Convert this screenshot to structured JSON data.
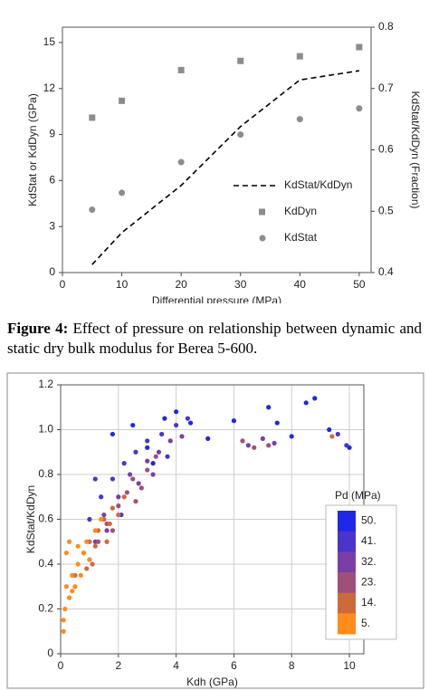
{
  "chart_data": [
    {
      "type": "scatter",
      "x_label": "Differential pressure (MPa)",
      "y_label": "KdStat or KdDyn (GPa)",
      "y2_label": "KdStat/KdDyn (Fraction)",
      "x": [
        5,
        10,
        20,
        30,
        40,
        50
      ],
      "xlim": [
        0,
        52
      ],
      "xticks": [
        0,
        10,
        20,
        30,
        40,
        50
      ],
      "ylim": [
        0,
        16
      ],
      "yticks": [
        0,
        3,
        6,
        9,
        12,
        15
      ],
      "y2lim": [
        0.4,
        0.8
      ],
      "y2ticks": [
        0.4,
        0.5,
        0.6,
        0.7,
        0.8
      ],
      "series": [
        {
          "name": "KdStat/KdDyn",
          "color": "#000000",
          "marker": "dashed-line",
          "axis": "y2",
          "values": [
            0.413,
            0.465,
            0.542,
            0.638,
            0.714,
            0.729
          ]
        },
        {
          "name": "KdDyn",
          "color": "#8c8c8c",
          "marker": "square",
          "values": [
            10.1,
            11.2,
            13.2,
            13.8,
            14.1,
            14.7
          ]
        },
        {
          "name": "KdStat",
          "color": "#8c8c8c",
          "marker": "circle",
          "values": [
            4.1,
            5.2,
            7.2,
            9.0,
            10.0,
            10.7
          ]
        }
      ]
    },
    {
      "type": "scatter",
      "x_label": "Kdh (GPa)",
      "y_label": "KdStat/KdDyn",
      "legend_title": "Pd (MPa)",
      "xlim": [
        0,
        10.5
      ],
      "xticks": [
        0,
        2,
        4,
        6,
        8,
        10
      ],
      "ylim": [
        0,
        1.2
      ],
      "yticks": [
        0,
        0.2,
        0.4,
        0.6,
        0.8,
        {
          "value": 1,
          "label": "1.0"
        },
        1.2
      ],
      "grid": true,
      "series": [
        {
          "name": "50.",
          "color": "#1e28e6",
          "x": [
            1.8,
            2.5,
            3.2,
            3.6,
            4.0,
            4.5,
            6.0,
            7.2,
            7.5,
            8.0,
            8.5,
            8.8,
            9.3,
            10.0,
            5.1,
            3.0
          ],
          "values": [
            0.98,
            1.02,
            0.85,
            1.05,
            1.08,
            1.03,
            1.04,
            1.1,
            1.03,
            0.97,
            1.12,
            1.14,
            1.0,
            0.92,
            0.96,
            0.92
          ]
        },
        {
          "name": "41.",
          "color": "#4a34cc",
          "x": [
            1.0,
            1.4,
            1.8,
            2.2,
            2.6,
            3.0,
            3.5,
            4.0,
            4.4,
            3.7,
            2.1,
            1.2,
            9.6,
            9.9
          ],
          "values": [
            0.6,
            0.7,
            0.78,
            0.85,
            0.9,
            0.95,
            0.98,
            1.02,
            1.05,
            0.88,
            0.62,
            0.78,
            0.98,
            0.93
          ]
        },
        {
          "name": "32.",
          "color": "#7b3ea6",
          "x": [
            1.2,
            1.5,
            2.0,
            2.4,
            2.7,
            3.0,
            3.4,
            3.8,
            4.2,
            6.5,
            7.0,
            7.4,
            1.6,
            3.2
          ],
          "values": [
            0.5,
            0.62,
            0.7,
            0.8,
            0.76,
            0.86,
            0.9,
            0.95,
            0.97,
            0.93,
            0.96,
            0.94,
            0.55,
            0.8
          ]
        },
        {
          "name": "23.",
          "color": "#9e5078",
          "x": [
            1.0,
            1.3,
            1.6,
            2.0,
            2.3,
            2.5,
            2.8,
            3.0,
            3.3,
            6.3,
            6.7,
            7.2,
            1.8,
            2.6
          ],
          "values": [
            0.42,
            0.5,
            0.58,
            0.66,
            0.72,
            0.78,
            0.74,
            0.82,
            0.88,
            0.95,
            0.92,
            0.93,
            0.55,
            0.68
          ]
        },
        {
          "name": "14.",
          "color": "#cc6a3c",
          "x": [
            0.5,
            0.8,
            1.0,
            1.1,
            1.3,
            1.5,
            1.6,
            1.8,
            2.0,
            2.2,
            0.9,
            1.2,
            9.4,
            1.7
          ],
          "values": [
            0.35,
            0.45,
            0.5,
            0.4,
            0.55,
            0.6,
            0.5,
            0.65,
            0.62,
            0.7,
            0.38,
            0.48,
            0.97,
            0.58
          ]
        },
        {
          "name": "5.",
          "color": "#ff8c1a",
          "x": [
            0.1,
            0.15,
            0.2,
            0.3,
            0.3,
            0.4,
            0.5,
            0.6,
            0.2,
            0.7,
            0.8,
            0.9,
            1.0,
            1.2,
            0.4,
            0.1,
            0.6,
            1.4
          ],
          "values": [
            0.1,
            0.2,
            0.3,
            0.25,
            0.5,
            0.35,
            0.3,
            0.4,
            0.45,
            0.35,
            0.45,
            0.5,
            0.42,
            0.55,
            0.28,
            0.15,
            0.48,
            0.6
          ]
        }
      ]
    }
  ],
  "figure_label": "Figure 4:",
  "caption": "Effect of pressure on relationship between dynamic and static dry bulk modulus for Berea 5-600."
}
